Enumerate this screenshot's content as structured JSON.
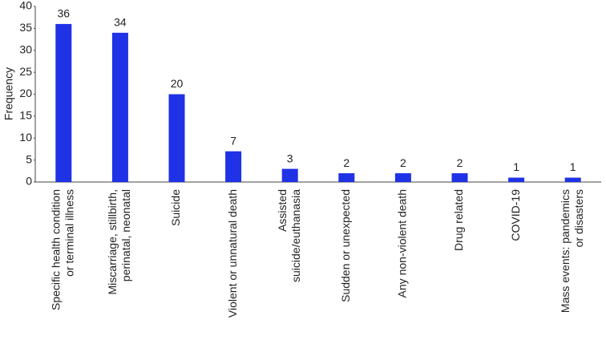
{
  "chart_data": {
    "type": "bar",
    "y_label": "Frequency",
    "categories": [
      [
        "Specific health condition",
        "or terminal illness"
      ],
      [
        "Miscarriage, stillbirth,",
        "perinatal, neonatal"
      ],
      [
        "Suicide"
      ],
      [
        "Violent or unnatural death"
      ],
      [
        "Assisted",
        "suicide/euthanasia"
      ],
      [
        "Sudden or unexpected"
      ],
      [
        "Any non-violent death"
      ],
      [
        "Drug related"
      ],
      [
        "COVID-19"
      ],
      [
        "Mass events: pandemics",
        "or disasters"
      ]
    ],
    "values": [
      36,
      34,
      20,
      7,
      3,
      2,
      2,
      2,
      1,
      1
    ],
    "color": "#1f32e6",
    "ylim": [
      0,
      40
    ],
    "yticks": [
      0,
      5,
      10,
      15,
      20,
      25,
      30,
      35,
      40
    ],
    "grid": false
  }
}
